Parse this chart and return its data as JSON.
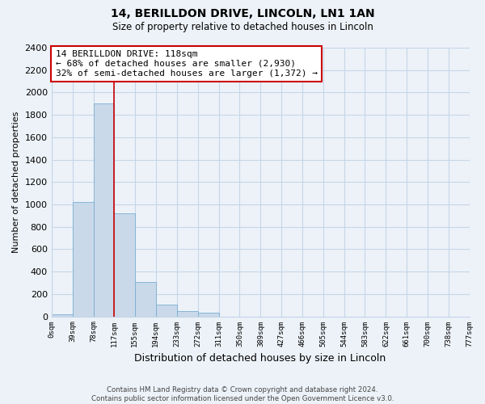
{
  "title": "14, BERILLDON DRIVE, LINCOLN, LN1 1AN",
  "subtitle": "Size of property relative to detached houses in Lincoln",
  "xlabel": "Distribution of detached houses by size in Lincoln",
  "ylabel": "Number of detached properties",
  "bin_edges": [
    0,
    39,
    78,
    117,
    155,
    194,
    233,
    272,
    311,
    350,
    389,
    427,
    466,
    505,
    544,
    583,
    622,
    661,
    700,
    738,
    777
  ],
  "bar_heights": [
    20,
    1020,
    1900,
    920,
    310,
    105,
    50,
    30,
    0,
    0,
    0,
    0,
    0,
    0,
    0,
    0,
    0,
    0,
    0,
    0
  ],
  "tick_labels": [
    "0sqm",
    "39sqm",
    "78sqm",
    "117sqm",
    "155sqm",
    "194sqm",
    "233sqm",
    "272sqm",
    "311sqm",
    "350sqm",
    "389sqm",
    "427sqm",
    "466sqm",
    "505sqm",
    "544sqm",
    "583sqm",
    "622sqm",
    "661sqm",
    "700sqm",
    "738sqm",
    "777sqm"
  ],
  "ylim": [
    0,
    2400
  ],
  "yticks": [
    0,
    200,
    400,
    600,
    800,
    1000,
    1200,
    1400,
    1600,
    1800,
    2000,
    2200,
    2400
  ],
  "bar_color": "#c9d9ea",
  "bar_edge_color": "#7aaed0",
  "grid_color": "#c5d5e8",
  "property_line_x": 117,
  "property_line_color": "#cc0000",
  "annotation_title": "14 BERILLDON DRIVE: 118sqm",
  "annotation_line1": "← 68% of detached houses are smaller (2,930)",
  "annotation_line2": "32% of semi-detached houses are larger (1,372) →",
  "annotation_box_facecolor": "#ffffff",
  "annotation_box_edgecolor": "#cc0000",
  "footer_line1": "Contains HM Land Registry data © Crown copyright and database right 2024.",
  "footer_line2": "Contains public sector information licensed under the Open Government Licence v3.0.",
  "background_color": "#edf2f8"
}
